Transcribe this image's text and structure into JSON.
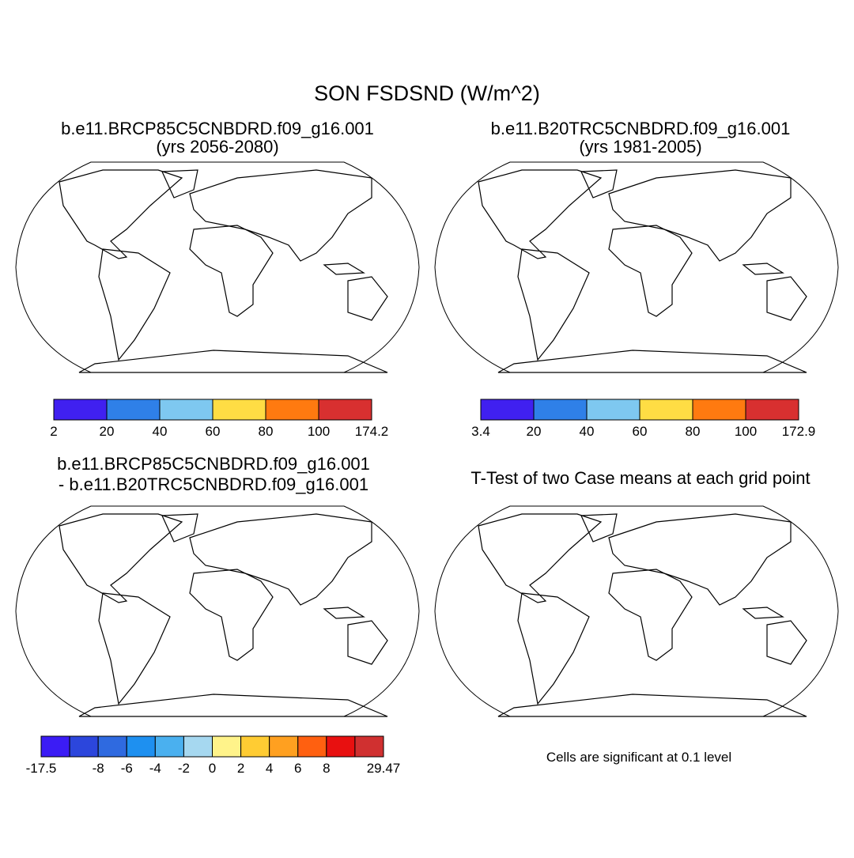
{
  "title": "SON FSDSND (W/m^2)",
  "panels": [
    {
      "title": [
        "b.e11.BRCP85C5CNBDRD.f09_g16.001",
        "(yrs 2056-2080)"
      ],
      "colorbar": {
        "colors": [
          "#4020f0",
          "#2f80e8",
          "#7ec8f0",
          "#ffdd44",
          "#ff7a10",
          "#d83030"
        ],
        "labels": [
          2,
          20,
          40,
          60,
          80,
          100,
          174.2
        ]
      }
    },
    {
      "title": [
        "b.e11.B20TRC5CNBDRD.f09_g16.001",
        "(yrs 1981-2005)"
      ],
      "colorbar": {
        "colors": [
          "#4020f0",
          "#2f80e8",
          "#7ec8f0",
          "#ffdd44",
          "#ff7a10",
          "#d83030"
        ],
        "labels": [
          3.4,
          20,
          40,
          60,
          80,
          100,
          172.9
        ]
      }
    },
    {
      "title": [
        "b.e11.BRCP85C5CNBDRD.f09_g16.001",
        "- b.e11.B20TRC5CNBDRD.f09_g16.001"
      ],
      "colorbar": {
        "colors": [
          "#3b1cf5",
          "#2c46dc",
          "#2f6ae0",
          "#1e90f0",
          "#4ab0ef",
          "#a6d8f0",
          "#fff38a",
          "#ffcc33",
          "#ffa020",
          "#ff6010",
          "#e81010",
          "#d03030"
        ],
        "labels": [
          -17.5,
          null,
          -8,
          -6,
          -4,
          -2,
          0,
          2,
          4,
          6,
          8,
          null,
          29.47
        ]
      }
    },
    {
      "title": [
        "T-Test of two Case means at each grid point"
      ],
      "note": "Cells are significant at 0.1 level"
    }
  ]
}
